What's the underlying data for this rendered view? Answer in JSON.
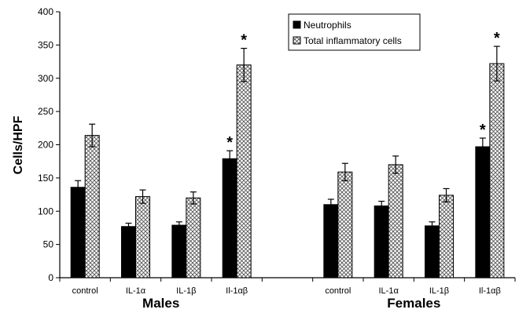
{
  "chart_data": {
    "type": "bar",
    "ylabel": "Cells/HPF",
    "ylim": [
      0,
      400
    ],
    "yticks": [
      0,
      50,
      100,
      150,
      200,
      250,
      300,
      350,
      400
    ],
    "grid": false,
    "legend_position": "top-right",
    "groups": [
      {
        "label": "Males",
        "categories": [
          "control",
          "IL-1α",
          "IL-1β",
          "Il-1αβ"
        ]
      },
      {
        "label": "Females",
        "categories": [
          "control",
          "IL-1α",
          "IL-1β",
          "Il-1αβ"
        ]
      }
    ],
    "series": [
      {
        "name": "Neutrophils",
        "fill": "solid",
        "color": "#000000",
        "values": [
          136,
          77,
          79,
          179,
          110,
          108,
          78,
          197
        ],
        "errors": [
          10,
          5,
          5,
          12,
          8,
          7,
          6,
          13
        ],
        "significant": [
          false,
          false,
          false,
          true,
          false,
          false,
          false,
          true
        ]
      },
      {
        "name": "Total inflammatory cells",
        "fill": "crosshatch",
        "color": "#c8c8c8",
        "values": [
          214,
          122,
          120,
          320,
          159,
          170,
          124,
          322
        ],
        "errors": [
          17,
          10,
          9,
          25,
          13,
          13,
          10,
          26
        ],
        "significant": [
          false,
          false,
          false,
          true,
          false,
          false,
          false,
          true
        ]
      }
    ],
    "annotation_marker": "*"
  }
}
